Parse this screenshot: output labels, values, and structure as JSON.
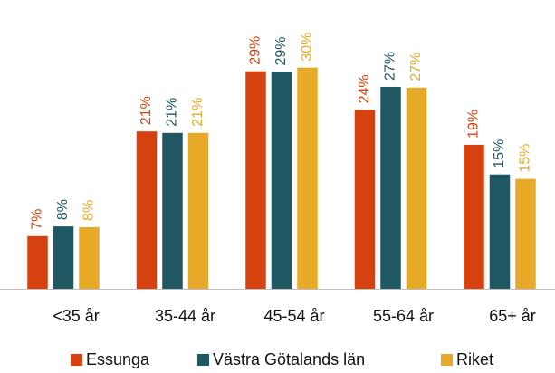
{
  "chart_data": {
    "type": "bar",
    "categories": [
      "<35 år",
      "35-44 år",
      "45-54 år",
      "55-64 år",
      "65+ år"
    ],
    "series": [
      {
        "name": "Essunga",
        "color": "#d5410f",
        "values": [
          7.1,
          21.2,
          29.3,
          24.1,
          19.4
        ],
        "value_labels": [
          "7%",
          "21%",
          "29%",
          "24%",
          "19%"
        ]
      },
      {
        "name": "Västra Götalands län",
        "color": "#1f5762",
        "values": [
          8.4,
          21.0,
          29.2,
          27.2,
          15.4
        ],
        "value_labels": [
          "8%",
          "21%",
          "29%",
          "27%",
          "15%"
        ]
      },
      {
        "name": "Riket",
        "color": "#e6aa28",
        "values": [
          8.3,
          21.0,
          29.8,
          27.1,
          14.8
        ],
        "value_labels": [
          "8%",
          "21%",
          "30%",
          "27%",
          "15%"
        ]
      }
    ],
    "legend": "bottom"
  }
}
